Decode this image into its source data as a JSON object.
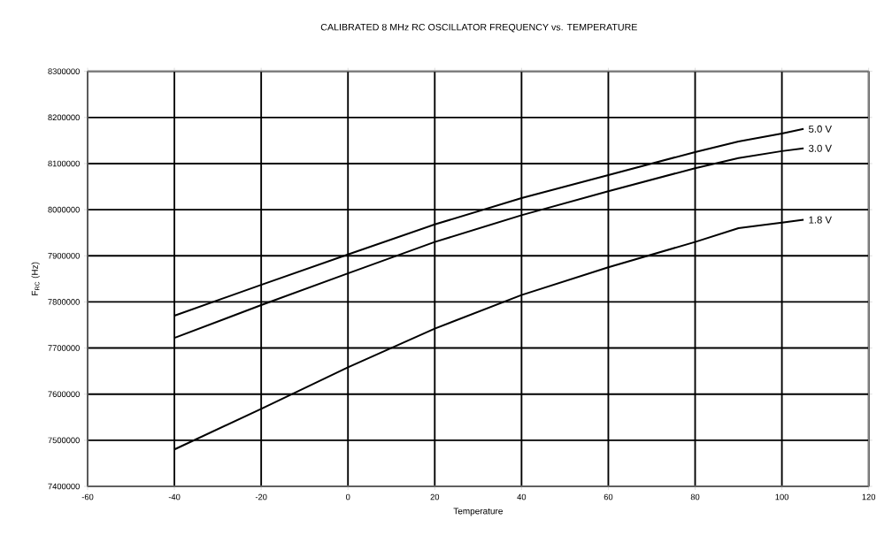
{
  "chart_data": {
    "type": "line",
    "title": "CALIBRATED 8 MHz RC OSCILLATOR FREQUENCY vs. TEMPERATURE",
    "xlabel": "Temperature",
    "ylabel": "F$_{RC}$ (Hz)",
    "x": [
      -40,
      -20,
      0,
      20,
      40,
      60,
      80,
      90,
      100,
      105
    ],
    "series": [
      {
        "name": "5.0 V",
        "color": "#000000",
        "values": [
          7770000,
          7837000,
          7903000,
          7968000,
          8025000,
          8075000,
          8125000,
          8148000,
          8165000,
          8175000
        ]
      },
      {
        "name": "3.0 V",
        "color": "#000000",
        "values": [
          7722000,
          7793000,
          7862000,
          7930000,
          7988000,
          8040000,
          8090000,
          8112000,
          8127000,
          8133000
        ]
      },
      {
        "name": "1.8 V",
        "color": "#000000",
        "values": [
          7480000,
          7568000,
          7658000,
          7742000,
          7815000,
          7875000,
          7930000,
          7960000,
          7972000,
          7978000
        ]
      }
    ],
    "xlim": [
      -60,
      120
    ],
    "xticks": [
      -60,
      -40,
      -20,
      0,
      20,
      40,
      60,
      80,
      100,
      120
    ],
    "ylim": [
      7400000,
      8300000
    ],
    "yticks": [
      7400000,
      7500000,
      7600000,
      7700000,
      7800000,
      7900000,
      8000000,
      8100000,
      8200000,
      8300000
    ],
    "grid": true,
    "legend": false,
    "marker": "none",
    "line_style": "solid"
  }
}
